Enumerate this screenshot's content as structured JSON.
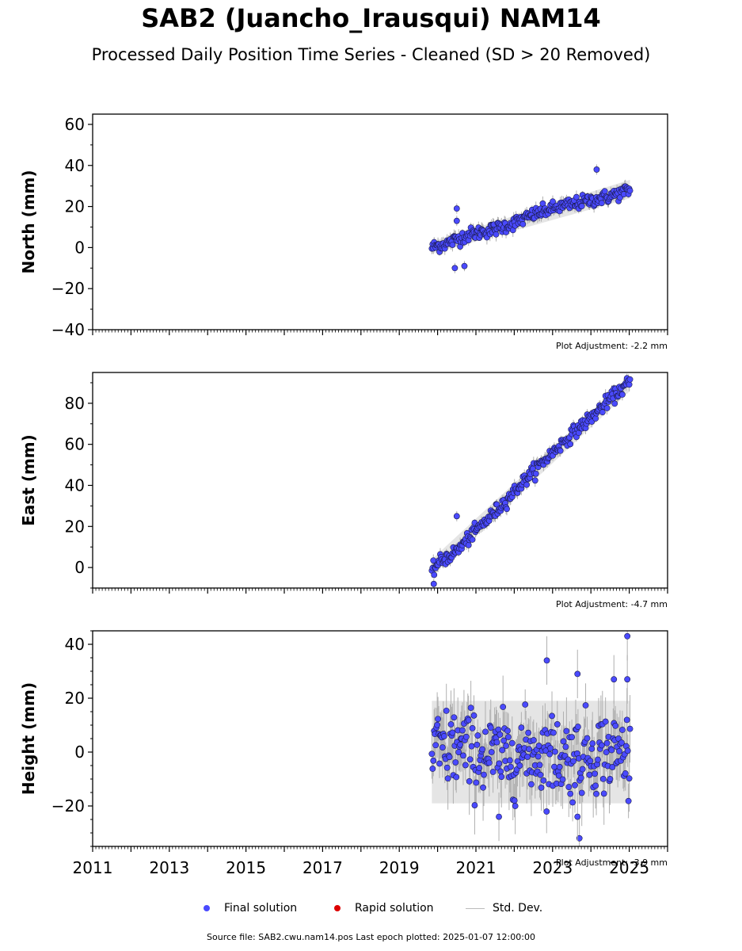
{
  "header": {
    "title": "SAB2 (Juancho_Irausqui) NAM14",
    "subtitle": "Processed Daily Position Time Series - Cleaned (SD > 20 Removed)"
  },
  "legend": {
    "final_label": "Final solution",
    "rapid_label": "Rapid solution",
    "std_label": "Std. Dev.",
    "final_color": "#4a4aff",
    "rapid_color": "#dd0000",
    "std_color": "#bbbbbb"
  },
  "footer": {
    "text": "Source file: SAB2.cwu.nam14.pos  Last epoch plotted: 2025-01-07 12:00:00"
  },
  "chart_data": [
    {
      "type": "scatter",
      "ylabel": "North (mm)",
      "xlim": [
        2011,
        2026
      ],
      "ylim": [
        -40,
        65
      ],
      "yticks": [
        -40,
        -20,
        0,
        20,
        40,
        60
      ],
      "adjustment": "Plot Adjustment: -2.2 mm",
      "series": [
        {
          "name": "Final solution",
          "color": "#4a4aff",
          "x": [
            2019.85,
            2020.0,
            2020.25,
            2020.5,
            2020.75,
            2021.0,
            2021.5,
            2022.0,
            2022.5,
            2023.0,
            2023.5,
            2024.0,
            2024.5,
            2025.0
          ],
          "y": [
            0,
            1,
            2,
            4,
            6,
            7,
            9,
            12,
            16,
            19,
            21,
            23,
            25,
            28
          ]
        }
      ],
      "outliers": [
        {
          "x": 2020.5,
          "y": 19
        },
        {
          "x": 2020.5,
          "y": 13
        },
        {
          "x": 2020.45,
          "y": -10
        },
        {
          "x": 2020.7,
          "y": -9
        },
        {
          "x": 2024.15,
          "y": 38
        }
      ],
      "band": {
        "x": [
          2019.85,
          2025.02
        ],
        "lo_start": -3,
        "hi_start": 3,
        "lo_end": 24,
        "hi_end": 33
      }
    },
    {
      "type": "scatter",
      "ylabel": "East (mm)",
      "xlim": [
        2011,
        2026
      ],
      "ylim": [
        -10,
        95
      ],
      "yticks": [
        0,
        20,
        40,
        60,
        80
      ],
      "adjustment": "Plot Adjustment: -4.7 mm",
      "series": [
        {
          "name": "Final solution",
          "color": "#4a4aff",
          "x": [
            2019.85,
            2020.0,
            2020.5,
            2021.0,
            2021.5,
            2022.0,
            2022.5,
            2023.0,
            2023.5,
            2024.0,
            2024.5,
            2025.0
          ],
          "y": [
            -2,
            2,
            8,
            18,
            27,
            37,
            47,
            56,
            65,
            73,
            82,
            90
          ]
        }
      ],
      "outliers": [
        {
          "x": 2020.5,
          "y": 25
        },
        {
          "x": 2019.9,
          "y": -8
        }
      ],
      "band": {
        "x": [
          2019.85,
          2025.02
        ],
        "lo_start": -4,
        "hi_start": 4,
        "lo_end": 86,
        "hi_end": 93
      }
    },
    {
      "type": "scatter",
      "ylabel": "Height (mm)",
      "xlim": [
        2011,
        2026
      ],
      "ylim": [
        -35,
        45
      ],
      "yticks": [
        -20,
        0,
        20,
        40
      ],
      "adjustment": "Plot Adjustment: -3.9 mm",
      "series": [
        {
          "name": "Final solution",
          "color": "#4a4aff",
          "x": [
            2019.85,
            2020.5,
            2021.0,
            2021.5,
            2022.0,
            2022.5,
            2023.0,
            2023.5,
            2024.0,
            2024.5,
            2025.0
          ],
          "y": [
            0,
            2,
            0,
            -2,
            -1,
            0,
            -1,
            -2,
            0,
            0,
            0
          ]
        }
      ],
      "outliers": [
        {
          "x": 2024.95,
          "y": 43
        },
        {
          "x": 2022.85,
          "y": 34
        },
        {
          "x": 2023.65,
          "y": 29
        },
        {
          "x": 2024.6,
          "y": 27
        },
        {
          "x": 2024.95,
          "y": 27
        },
        {
          "x": 2023.7,
          "y": -32
        },
        {
          "x": 2023.65,
          "y": -24
        },
        {
          "x": 2021.6,
          "y": -24
        }
      ],
      "band": {
        "x": [
          2019.85,
          2025.02
        ],
        "lo_start": -19,
        "hi_start": 19,
        "lo_end": -19,
        "hi_end": 19
      }
    }
  ],
  "x_tick_labels": [
    "2011",
    "2013",
    "2015",
    "2017",
    "2019",
    "2021",
    "2023",
    "2025"
  ]
}
